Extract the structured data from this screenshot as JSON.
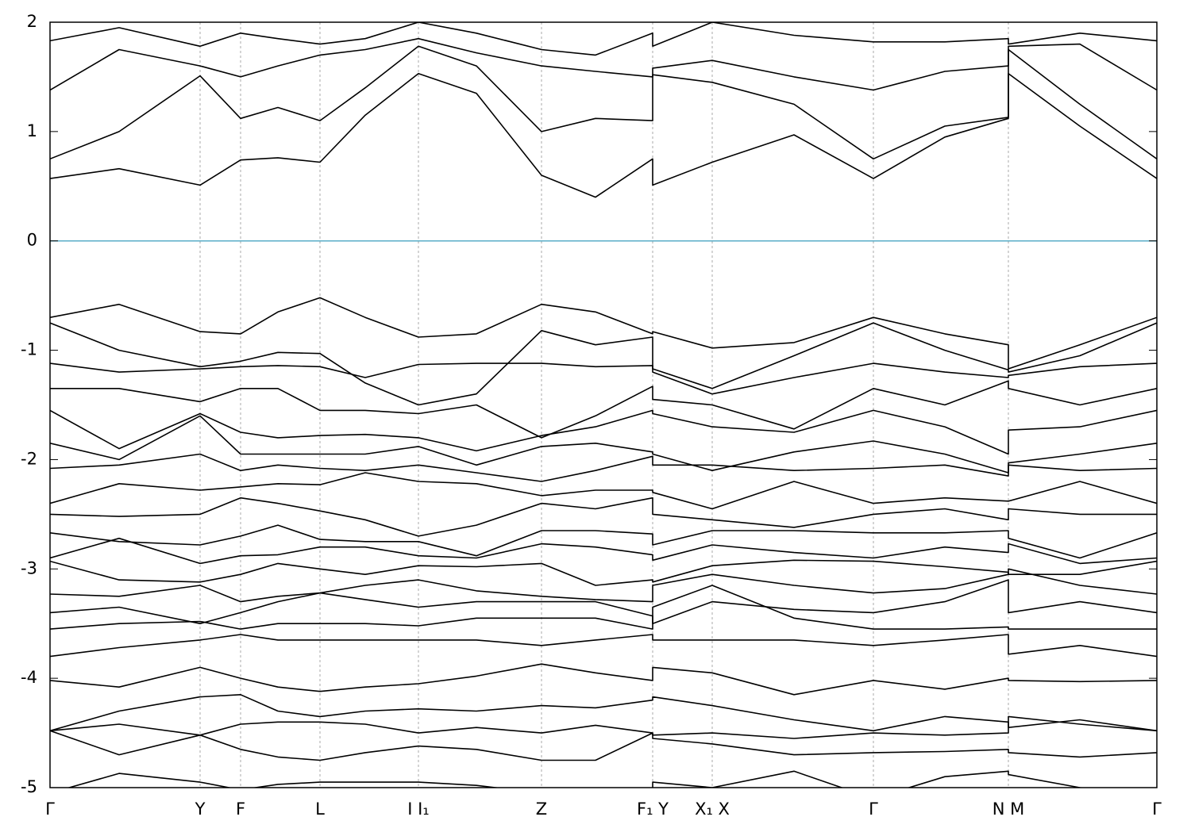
{
  "chart_data": {
    "type": "line",
    "x": [
      0,
      0.87,
      1.89,
      2.4,
      2.87,
      3.4,
      3.97,
      4.64,
      5.37,
      6.19,
      6.87,
      7.59,
      7.59,
      8.34,
      9.37,
      10.37,
      11.27,
      12.07,
      12.07,
      12.97,
      13.94
    ],
    "xlim": [
      0,
      13.94
    ],
    "xticks": [
      {
        "value": 0,
        "label": "Γ"
      },
      {
        "value": 1.89,
        "label": "Y"
      },
      {
        "value": 2.4,
        "label": "F"
      },
      {
        "value": 3.4,
        "label": "L"
      },
      {
        "value": 4.64,
        "label": "I  I₁"
      },
      {
        "value": 6.19,
        "label": "Z"
      },
      {
        "value": 7.59,
        "label": "F₁ Y"
      },
      {
        "value": 8.34,
        "label": "X₁ X"
      },
      {
        "value": 10.37,
        "label": "Γ"
      },
      {
        "value": 12.07,
        "label": "N M"
      },
      {
        "value": 13.94,
        "label": "Γ"
      }
    ],
    "ylim": [
      -5,
      2
    ],
    "yticks": [
      2,
      1,
      0,
      -1,
      -2,
      -3,
      -4,
      -5
    ],
    "xgrid": true,
    "hline": {
      "value": 0,
      "color": "#5aaec8"
    },
    "series": [
      {
        "color": "#000000",
        "values": [
          0.57,
          0.66,
          0.51,
          0.74,
          0.76,
          0.72,
          1.15,
          1.53,
          1.35,
          0.6,
          0.4,
          0.75,
          0.51,
          0.72,
          0.97,
          0.57,
          0.95,
          1.12,
          1.53,
          1.05,
          0.57
        ]
      },
      {
        "color": "#000000",
        "values": [
          0.75,
          1.0,
          1.51,
          1.12,
          1.22,
          1.1,
          1.4,
          1.78,
          1.6,
          1.0,
          1.12,
          1.1,
          1.52,
          1.45,
          1.25,
          0.75,
          1.05,
          1.13,
          1.75,
          1.25,
          0.75
        ]
      },
      {
        "color": "#000000",
        "values": [
          1.38,
          1.75,
          1.6,
          1.5,
          1.6,
          1.7,
          1.75,
          1.85,
          1.72,
          1.6,
          1.55,
          1.5,
          1.58,
          1.65,
          1.5,
          1.38,
          1.55,
          1.6,
          1.78,
          1.8,
          1.38
        ]
      },
      {
        "color": "#000000",
        "values": [
          1.83,
          1.95,
          1.78,
          1.9,
          1.85,
          1.8,
          1.85,
          2.0,
          1.9,
          1.75,
          1.7,
          1.9,
          1.78,
          2.0,
          1.88,
          1.82,
          1.82,
          1.85,
          1.8,
          1.9,
          1.83
        ]
      },
      {
        "color": "#000000",
        "values": [
          -0.7,
          -0.58,
          -0.83,
          -0.85,
          -0.65,
          -0.52,
          -0.7,
          -0.88,
          -0.85,
          -0.58,
          -0.65,
          -0.85,
          -0.83,
          -0.98,
          -0.93,
          -0.7,
          -0.85,
          -0.95,
          -1.17,
          -0.95,
          -0.7
        ]
      },
      {
        "color": "#000000",
        "values": [
          -0.75,
          -1.0,
          -1.15,
          -1.1,
          -1.02,
          -1.03,
          -1.3,
          -1.5,
          -1.4,
          -0.82,
          -0.95,
          -0.88,
          -1.17,
          -1.35,
          -1.05,
          -0.75,
          -1.0,
          -1.18,
          -1.2,
          -1.05,
          -0.75
        ]
      },
      {
        "color": "#000000",
        "values": [
          -1.12,
          -1.2,
          -1.17,
          -1.15,
          -1.14,
          -1.15,
          -1.25,
          -1.13,
          -1.12,
          -1.12,
          -1.15,
          -1.14,
          -1.2,
          -1.4,
          -1.25,
          -1.12,
          -1.2,
          -1.25,
          -1.23,
          -1.15,
          -1.12
        ]
      },
      {
        "color": "#000000",
        "values": [
          -1.35,
          -1.35,
          -1.47,
          -1.35,
          -1.35,
          -1.55,
          -1.55,
          -1.58,
          -1.5,
          -1.8,
          -1.6,
          -1.33,
          -1.45,
          -1.5,
          -1.72,
          -1.35,
          -1.5,
          -1.28,
          -1.35,
          -1.5,
          -1.35
        ]
      },
      {
        "color": "#000000",
        "values": [
          -1.55,
          -1.9,
          -1.58,
          -1.75,
          -1.8,
          -1.78,
          -1.77,
          -1.8,
          -1.92,
          -1.78,
          -1.7,
          -1.55,
          -1.58,
          -1.7,
          -1.75,
          -1.55,
          -1.7,
          -1.95,
          -1.73,
          -1.7,
          -1.55
        ]
      },
      {
        "color": "#000000",
        "values": [
          -1.85,
          -2.0,
          -1.6,
          -1.95,
          -1.95,
          -1.95,
          -1.95,
          -1.88,
          -2.05,
          -1.88,
          -1.85,
          -1.93,
          -1.95,
          -2.1,
          -1.93,
          -1.83,
          -1.95,
          -2.12,
          -2.03,
          -1.95,
          -1.85
        ]
      },
      {
        "color": "#000000",
        "values": [
          -2.08,
          -2.05,
          -1.95,
          -2.1,
          -2.05,
          -2.08,
          -2.1,
          -2.05,
          -2.12,
          -2.2,
          -2.1,
          -1.97,
          -2.05,
          -2.05,
          -2.1,
          -2.08,
          -2.05,
          -2.15,
          -2.05,
          -2.1,
          -2.08
        ]
      },
      {
        "color": "#000000",
        "values": [
          -2.4,
          -2.22,
          -2.28,
          -2.25,
          -2.22,
          -2.23,
          -2.12,
          -2.2,
          -2.22,
          -2.33,
          -2.28,
          -2.28,
          -2.3,
          -2.45,
          -2.2,
          -2.4,
          -2.35,
          -2.38,
          -2.38,
          -2.2,
          -2.4
        ]
      },
      {
        "color": "#000000",
        "values": [
          -2.5,
          -2.52,
          -2.5,
          -2.35,
          -2.4,
          -2.47,
          -2.55,
          -2.7,
          -2.6,
          -2.4,
          -2.45,
          -2.35,
          -2.5,
          -2.55,
          -2.62,
          -2.5,
          -2.45,
          -2.55,
          -2.45,
          -2.5,
          -2.5
        ]
      },
      {
        "color": "#000000",
        "values": [
          -2.67,
          -2.75,
          -2.78,
          -2.7,
          -2.6,
          -2.73,
          -2.75,
          -2.75,
          -2.88,
          -2.65,
          -2.65,
          -2.68,
          -2.78,
          -2.65,
          -2.65,
          -2.67,
          -2.67,
          -2.65,
          -2.72,
          -2.9,
          -2.67
        ]
      },
      {
        "color": "#000000",
        "values": [
          -2.9,
          -2.72,
          -2.95,
          -2.88,
          -2.87,
          -2.8,
          -2.8,
          -2.88,
          -2.9,
          -2.77,
          -2.8,
          -2.87,
          -2.92,
          -2.78,
          -2.85,
          -2.9,
          -2.8,
          -2.85,
          -2.77,
          -2.95,
          -2.9
        ]
      },
      {
        "color": "#000000",
        "values": [
          -2.93,
          -3.1,
          -3.12,
          -3.05,
          -2.95,
          -3.0,
          -3.05,
          -2.97,
          -2.98,
          -2.95,
          -3.15,
          -3.1,
          -3.12,
          -2.97,
          -2.92,
          -2.93,
          -2.98,
          -3.03,
          -3.05,
          -3.05,
          -2.93
        ]
      },
      {
        "color": "#000000",
        "values": [
          -3.23,
          -3.25,
          -3.15,
          -3.3,
          -3.25,
          -3.22,
          -3.15,
          -3.1,
          -3.2,
          -3.25,
          -3.28,
          -3.3,
          -3.15,
          -3.05,
          -3.15,
          -3.22,
          -3.18,
          -3.05,
          -3.0,
          -3.15,
          -3.23
        ]
      },
      {
        "color": "#000000",
        "values": [
          -3.4,
          -3.35,
          -3.5,
          -3.4,
          -3.3,
          -3.22,
          -3.28,
          -3.35,
          -3.3,
          -3.3,
          -3.3,
          -3.43,
          -3.5,
          -3.3,
          -3.37,
          -3.4,
          -3.3,
          -3.1,
          -3.4,
          -3.3,
          -3.4
        ]
      },
      {
        "color": "#000000",
        "values": [
          -3.55,
          -3.5,
          -3.48,
          -3.55,
          -3.5,
          -3.5,
          -3.5,
          -3.52,
          -3.45,
          -3.45,
          -3.45,
          -3.55,
          -3.35,
          -3.15,
          -3.45,
          -3.55,
          -3.55,
          -3.53,
          -3.55,
          -3.55,
          -3.55
        ]
      },
      {
        "color": "#000000",
        "values": [
          -3.8,
          -3.72,
          -3.65,
          -3.6,
          -3.65,
          -3.65,
          -3.65,
          -3.65,
          -3.65,
          -3.7,
          -3.65,
          -3.6,
          -3.65,
          -3.65,
          -3.65,
          -3.7,
          -3.65,
          -3.6,
          -3.78,
          -3.7,
          -3.8
        ]
      },
      {
        "color": "#000000",
        "values": [
          -4.02,
          -4.08,
          -3.9,
          -4.0,
          -4.08,
          -4.12,
          -4.08,
          -4.05,
          -3.98,
          -3.87,
          -3.95,
          -4.02,
          -3.9,
          -3.95,
          -4.15,
          -4.02,
          -4.1,
          -4.0,
          -4.02,
          -4.03,
          -4.02
        ]
      },
      {
        "color": "#000000",
        "values": [
          -4.48,
          -4.3,
          -4.17,
          -4.15,
          -4.3,
          -4.35,
          -4.3,
          -4.28,
          -4.3,
          -4.25,
          -4.27,
          -4.2,
          -4.17,
          -4.25,
          -4.38,
          -4.48,
          -4.35,
          -4.4,
          -4.45,
          -4.38,
          -4.48
        ]
      },
      {
        "color": "#000000",
        "values": [
          -4.48,
          -4.42,
          -4.52,
          -4.42,
          -4.4,
          -4.4,
          -4.42,
          -4.5,
          -4.45,
          -4.5,
          -4.43,
          -4.5,
          -4.52,
          -4.5,
          -4.55,
          -4.5,
          -4.52,
          -4.5,
          -4.35,
          -4.42,
          -4.48
        ]
      },
      {
        "color": "#000000",
        "values": [
          -4.48,
          -4.7,
          -4.52,
          -4.65,
          -4.72,
          -4.75,
          -4.68,
          -4.62,
          -4.65,
          -4.75,
          -4.75,
          -4.5,
          -4.55,
          -4.6,
          -4.7,
          -4.68,
          -4.67,
          -4.65,
          -4.68,
          -4.72,
          -4.68
        ]
      },
      {
        "color": "#000000",
        "values": [
          -5.05,
          -4.87,
          -4.95,
          -5.02,
          -4.97,
          -4.95,
          -4.95,
          -4.95,
          -4.98,
          -5.05,
          -5.05,
          -5.03,
          -4.95,
          -5.0,
          -4.85,
          -5.1,
          -4.9,
          -4.85,
          -4.88,
          -5.0,
          -5.1
        ]
      }
    ]
  }
}
